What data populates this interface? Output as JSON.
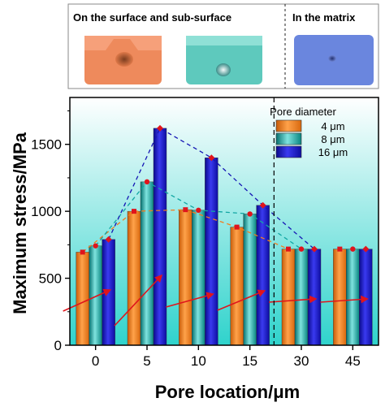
{
  "inset": {
    "left_label": "On the surface and sub-surface",
    "right_label": "In the matrix"
  },
  "chart_data": {
    "type": "bar",
    "categories": [
      "0",
      "5",
      "10",
      "15",
      "30",
      "45"
    ],
    "xlabel": "Pore location/μm",
    "ylabel": "Maximum stress/MPa",
    "ylim": [
      0,
      1850
    ],
    "yticks": [
      0,
      500,
      1000,
      1500
    ],
    "legend": {
      "title": "Pore diameter",
      "placement": "top-right"
    },
    "series": [
      {
        "name": "4 μm",
        "color": "#f07d1f",
        "values": [
          695,
          1000,
          1012,
          882,
          718,
          718
        ]
      },
      {
        "name": "8 μm",
        "color": "#12a6a3",
        "values": [
          742,
          1220,
          1008,
          980,
          718,
          718
        ]
      },
      {
        "name": "16 μm",
        "color": "#1515b4",
        "values": [
          790,
          1620,
          1400,
          1045,
          718,
          718
        ]
      }
    ],
    "divider_after_category": "15",
    "colors": {
      "background_top": "#ffffff",
      "background_bottom": "#2fd3cc",
      "marker": "#e0141c",
      "arrow": "#e0141c"
    }
  }
}
